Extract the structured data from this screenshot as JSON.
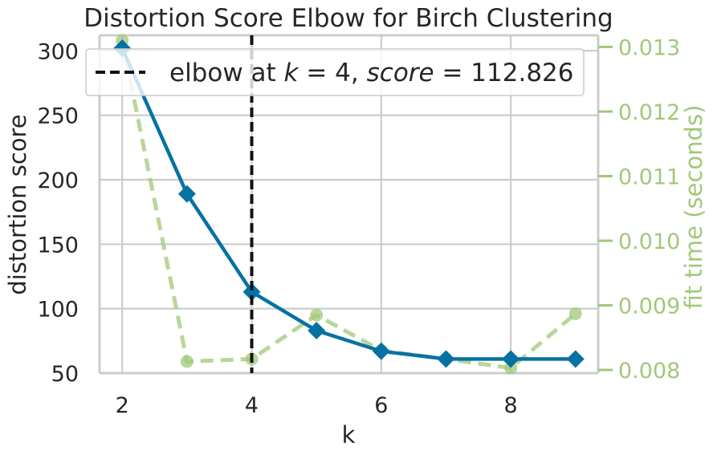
{
  "chart_data": {
    "type": "line",
    "title": "Distortion Score Elbow for Birch Clustering",
    "xlabel": "k",
    "ylabel": "distortion score",
    "y2label": "fit time (seconds)",
    "x": [
      2,
      3,
      4,
      5,
      6,
      7,
      8,
      9
    ],
    "xlim": [
      1.65,
      9.35
    ],
    "ylim": [
      50,
      312
    ],
    "y2lim": [
      0.00795,
      0.01318
    ],
    "xticks": [
      2,
      4,
      6,
      8
    ],
    "yticks": [
      50,
      100,
      150,
      200,
      250,
      300
    ],
    "y2ticks": [
      0.008,
      0.009,
      0.01,
      0.011,
      0.012,
      0.013
    ],
    "grid": true,
    "legend_position": "top",
    "series": [
      {
        "key": "distortion",
        "axis": "left",
        "color": "#0672a3",
        "marker": "diamond",
        "line": "solid",
        "values": [
          302,
          189,
          113,
          83,
          67,
          61,
          61,
          61
        ]
      },
      {
        "key": "fit_time",
        "axis": "right",
        "color": "#a1c878",
        "marker": "circle",
        "line": "dashed",
        "values": [
          0.0131,
          0.00813,
          0.00817,
          0.00885,
          0.0083,
          0.00817,
          0.00803,
          0.00887
        ]
      }
    ],
    "elbow": {
      "k": 4,
      "score": "112.826",
      "color": "#111111",
      "label_prefix": "elbow at ",
      "label_k_var": "k",
      "label_eq": " = 4, ",
      "label_score_var": "score",
      "label_score_eq": " = 112.826"
    }
  }
}
